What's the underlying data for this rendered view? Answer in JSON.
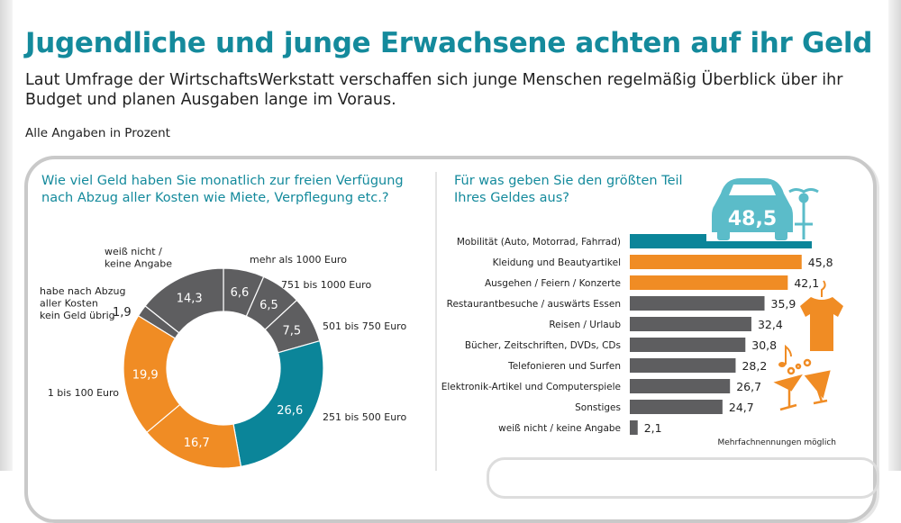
{
  "header": {
    "title": "Jugendliche und junge Erwachsene achten auf ihr Geld",
    "subtitle": "Laut Umfrage der WirtschaftsWerkstatt verschaffen sich junge Menschen regelmäßig Überblick über ihr Budget und planen Ausgaben lange im Voraus.",
    "unit_note": "Alle Angaben in Prozent"
  },
  "colors": {
    "teal": "#0b8599",
    "orange": "#f08c24",
    "gray": "#5e5e60",
    "title": "#148a9c"
  },
  "chart_data": [
    {
      "type": "pie",
      "donut": true,
      "title": "Wie viel Geld haben Sie monatlich zur freien Verfügung nach Abzug aller Kosten wie Miete, Verpflegung etc.?",
      "slices": [
        {
          "label": "mehr als 1000 Euro",
          "value": 6.6,
          "display": "6,6",
          "color": "#5e5e60"
        },
        {
          "label": "751 bis 1000 Euro",
          "value": 6.5,
          "display": "6,5",
          "color": "#5e5e60"
        },
        {
          "label": "501 bis 750 Euro",
          "value": 7.5,
          "display": "7,5",
          "color": "#5e5e60"
        },
        {
          "label": "251 bis 500 Euro",
          "value": 26.6,
          "display": "26,6",
          "color": "#0b8599"
        },
        {
          "label": "",
          "value": 16.7,
          "display": "16,7",
          "color": "#f08c24"
        },
        {
          "label": "1 bis 100 Euro",
          "value": 19.9,
          "display": "19,9",
          "color": "#f08c24"
        },
        {
          "label": "habe nach Abzug aller Kosten kein Geld übrig",
          "value": 1.9,
          "display": "1,9",
          "color": "#5e5e60"
        },
        {
          "label": "weiß nicht / keine Angabe",
          "value": 14.3,
          "display": "14,3",
          "color": "#5e5e60"
        }
      ]
    },
    {
      "type": "bar",
      "orientation": "horizontal",
      "title": "Für was geben Sie den größten Teil Ihres Geldes aus?",
      "note": "Mehrfachnennungen möglich",
      "categories": [
        "Mobilität (Auto, Motorrad, Fahrrad)",
        "Kleidung und Beautyartikel",
        "Ausgehen / Feiern / Konzerte",
        "Restaurantbesuche / auswärts Essen",
        "Reisen / Urlaub",
        "Bücher, Zeitschriften, DVDs, CDs",
        "Telefonieren und Surfen",
        "Elektronik-Artikel und Computerspiele",
        "Sonstiges",
        "weiß nicht / keine Angabe"
      ],
      "values": [
        48.5,
        45.8,
        42.1,
        35.9,
        32.4,
        30.8,
        28.2,
        26.7,
        24.7,
        2.1
      ],
      "display": [
        "48,5",
        "45,8",
        "42,1",
        "35,9",
        "32,4",
        "30,8",
        "28,2",
        "26,7",
        "24,7",
        "2,1"
      ],
      "colors": [
        "#0b8599",
        "#f08c24",
        "#f08c24",
        "#5e5e60",
        "#5e5e60",
        "#5e5e60",
        "#5e5e60",
        "#5e5e60",
        "#5e5e60",
        "#5e5e60"
      ],
      "icons": [
        "car-icon",
        "motorcycle-icon",
        "tshirt-icon",
        "cocktail-glasses-icon",
        "music-note-icon"
      ]
    }
  ]
}
